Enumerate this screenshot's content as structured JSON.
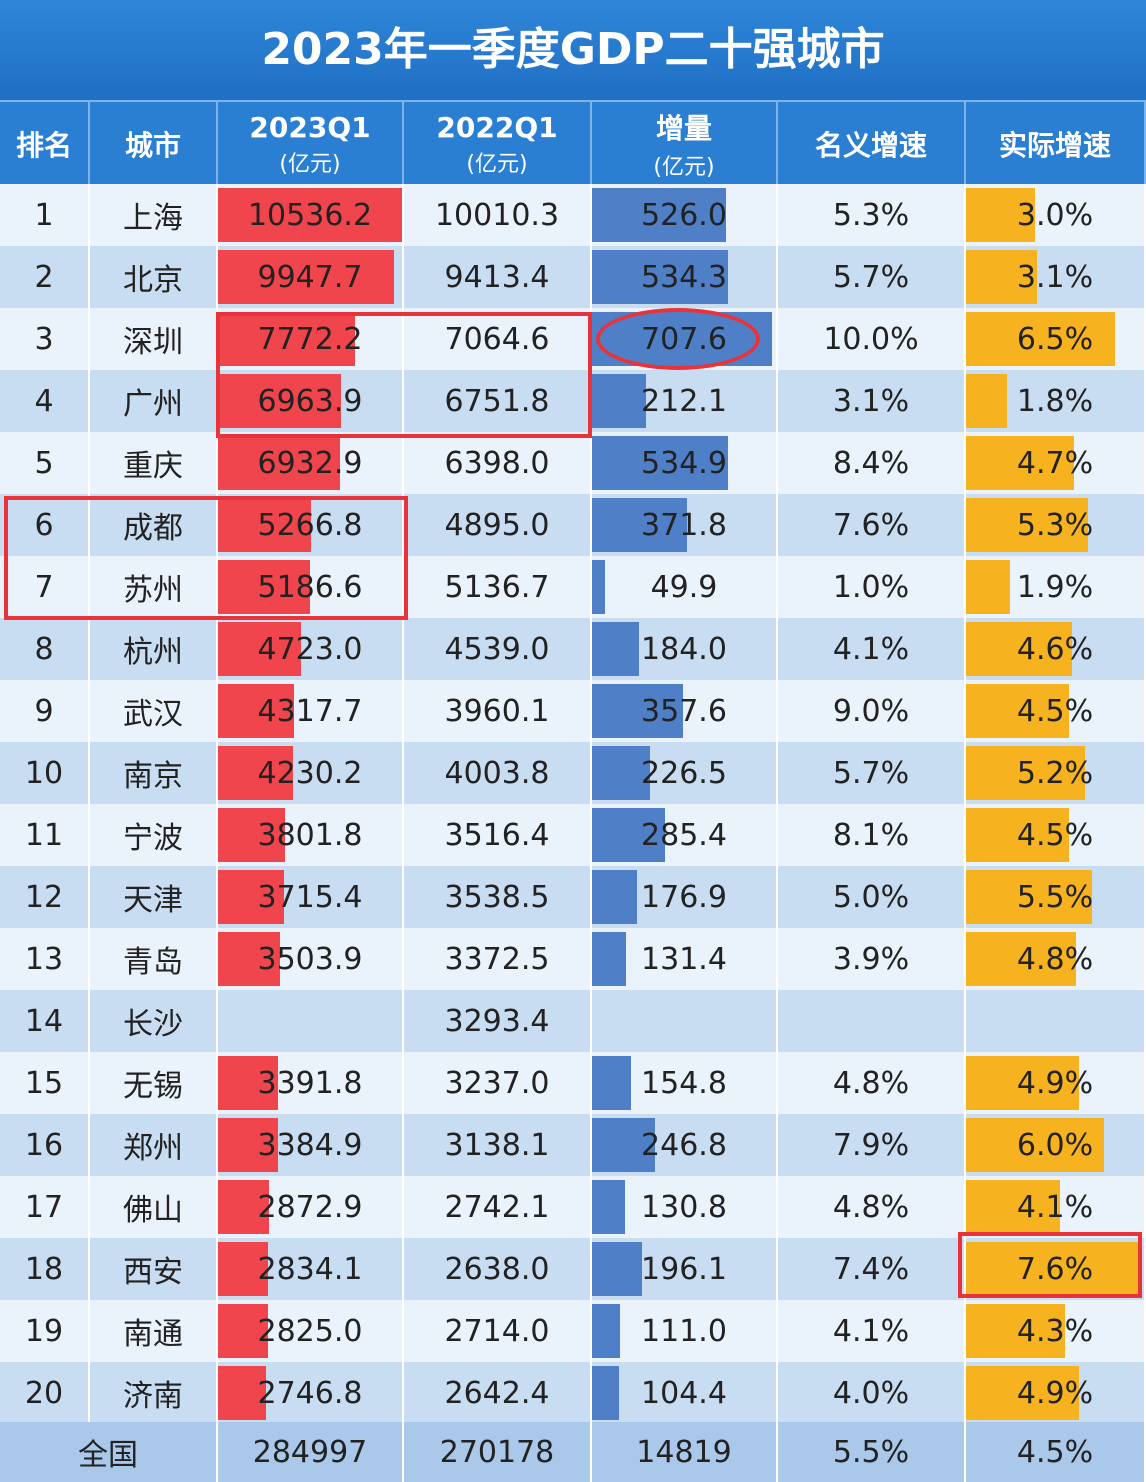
{
  "title": "2023年一季度GDP二十强城市",
  "headers": [
    {
      "label": "排名",
      "unit": ""
    },
    {
      "label": "城市",
      "unit": ""
    },
    {
      "label": "2023Q1",
      "unit": "(亿元)"
    },
    {
      "label": "2022Q1",
      "unit": "(亿元)"
    },
    {
      "label": "增量",
      "unit": "(亿元)"
    },
    {
      "label": "名义增速",
      "unit": ""
    },
    {
      "label": "实际增速",
      "unit": ""
    }
  ],
  "colors": {
    "title_bg": "#2a7ed2",
    "header_bg": "#2b7fd3",
    "bar_2023": "#f0454c",
    "bar_increment": "#4f7fc7",
    "bar_real_growth": "#f7b21f",
    "row_light": "#eaf2fb",
    "row_dark": "#c8dcf2",
    "highlight": "#e8333a",
    "total_bg": "#a9c8ea"
  },
  "chart_data": {
    "type": "table",
    "title": "2023年一季度GDP二十强城市",
    "rows": [
      {
        "rank": "1",
        "city": "上海",
        "q2023": "10536.2",
        "q2022": "10010.3",
        "inc": "526.0",
        "nominal": "5.3%",
        "real": "3.0%"
      },
      {
        "rank": "2",
        "city": "北京",
        "q2023": "9947.7",
        "q2022": "9413.4",
        "inc": "534.3",
        "nominal": "5.7%",
        "real": "3.1%"
      },
      {
        "rank": "3",
        "city": "深圳",
        "q2023": "7772.2",
        "q2022": "7064.6",
        "inc": "707.6",
        "nominal": "10.0%",
        "real": "6.5%"
      },
      {
        "rank": "4",
        "city": "广州",
        "q2023": "6963.9",
        "q2022": "6751.8",
        "inc": "212.1",
        "nominal": "3.1%",
        "real": "1.8%"
      },
      {
        "rank": "5",
        "city": "重庆",
        "q2023": "6932.9",
        "q2022": "6398.0",
        "inc": "534.9",
        "nominal": "8.4%",
        "real": "4.7%"
      },
      {
        "rank": "6",
        "city": "成都",
        "q2023": "5266.8",
        "q2022": "4895.0",
        "inc": "371.8",
        "nominal": "7.6%",
        "real": "5.3%"
      },
      {
        "rank": "7",
        "city": "苏州",
        "q2023": "5186.6",
        "q2022": "5136.7",
        "inc": "49.9",
        "nominal": "1.0%",
        "real": "1.9%"
      },
      {
        "rank": "8",
        "city": "杭州",
        "q2023": "4723.0",
        "q2022": "4539.0",
        "inc": "184.0",
        "nominal": "4.1%",
        "real": "4.6%"
      },
      {
        "rank": "9",
        "city": "武汉",
        "q2023": "4317.7",
        "q2022": "3960.1",
        "inc": "357.6",
        "nominal": "9.0%",
        "real": "4.5%"
      },
      {
        "rank": "10",
        "city": "南京",
        "q2023": "4230.2",
        "q2022": "4003.8",
        "inc": "226.5",
        "nominal": "5.7%",
        "real": "5.2%"
      },
      {
        "rank": "11",
        "city": "宁波",
        "q2023": "3801.8",
        "q2022": "3516.4",
        "inc": "285.4",
        "nominal": "8.1%",
        "real": "4.5%"
      },
      {
        "rank": "12",
        "city": "天津",
        "q2023": "3715.4",
        "q2022": "3538.5",
        "inc": "176.9",
        "nominal": "5.0%",
        "real": "5.5%"
      },
      {
        "rank": "13",
        "city": "青岛",
        "q2023": "3503.9",
        "q2022": "3372.5",
        "inc": "131.4",
        "nominal": "3.9%",
        "real": "4.8%"
      },
      {
        "rank": "14",
        "city": "长沙",
        "q2023": "",
        "q2022": "3293.4",
        "inc": "",
        "nominal": "",
        "real": ""
      },
      {
        "rank": "15",
        "city": "无锡",
        "q2023": "3391.8",
        "q2022": "3237.0",
        "inc": "154.8",
        "nominal": "4.8%",
        "real": "4.9%"
      },
      {
        "rank": "16",
        "city": "郑州",
        "q2023": "3384.9",
        "q2022": "3138.1",
        "inc": "246.8",
        "nominal": "7.9%",
        "real": "6.0%"
      },
      {
        "rank": "17",
        "city": "佛山",
        "q2023": "2872.9",
        "q2022": "2742.1",
        "inc": "130.8",
        "nominal": "4.8%",
        "real": "4.1%"
      },
      {
        "rank": "18",
        "city": "西安",
        "q2023": "2834.1",
        "q2022": "2638.0",
        "inc": "196.1",
        "nominal": "7.4%",
        "real": "7.6%"
      },
      {
        "rank": "19",
        "city": "南通",
        "q2023": "2825.0",
        "q2022": "2714.0",
        "inc": "111.0",
        "nominal": "4.1%",
        "real": "4.3%"
      },
      {
        "rank": "20",
        "city": "济南",
        "q2023": "2746.8",
        "q2022": "2642.4",
        "inc": "104.4",
        "nominal": "4.0%",
        "real": "4.9%"
      }
    ],
    "total": {
      "label": "全国",
      "q2023": "284997",
      "q2022": "270178",
      "inc": "14819",
      "nominal": "5.5%",
      "real": "4.5%"
    }
  }
}
